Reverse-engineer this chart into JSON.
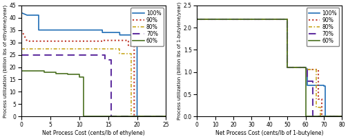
{
  "left": {
    "xlabel": "Net Process Cost (cents/lb of ethylene)",
    "ylabel": "Process utilization (billion lbs of ethylene/year)",
    "xlim": [
      0,
      25
    ],
    "ylim": [
      0,
      45
    ],
    "yticks": [
      0,
      5,
      10,
      15,
      20,
      25,
      30,
      35,
      40,
      45
    ],
    "xticks": [
      0,
      5,
      10,
      15,
      20,
      25
    ],
    "series": [
      {
        "label": "100%",
        "color": "#1f6db5",
        "linestyle": "solid",
        "linewidth": 1.2,
        "x": [
          0,
          1,
          1,
          3,
          3,
          3,
          14,
          14,
          17,
          17,
          19,
          19,
          20,
          20,
          25
        ],
        "y": [
          42,
          41,
          41,
          41,
          35,
          35,
          35,
          34,
          34,
          33,
          33,
          32,
          32,
          0,
          0
        ]
      },
      {
        "label": "90%",
        "color": "#c0392b",
        "linestyle": "dotted",
        "linewidth": 1.5,
        "x": [
          0,
          1,
          14,
          14,
          18.5,
          18.5,
          19.5,
          19.5,
          25
        ],
        "y": [
          35,
          30.5,
          30.5,
          30.8,
          30.8,
          28.5,
          28.5,
          0,
          0
        ]
      },
      {
        "label": "80%",
        "color": "#c8a820",
        "linestyle": "dashdot",
        "linewidth": 1.2,
        "x": [
          0,
          14,
          14,
          17,
          17,
          19,
          19,
          25
        ],
        "y": [
          27.5,
          27.5,
          27.5,
          27.5,
          25.5,
          25.5,
          0,
          0
        ]
      },
      {
        "label": "70%",
        "color": "#6030a0",
        "linestyle": "dashed",
        "linewidth": 1.5,
        "x": [
          0,
          14.5,
          14.5,
          15.5,
          15.5,
          25
        ],
        "y": [
          25,
          25,
          23,
          23,
          0,
          0
        ]
      },
      {
        "label": "60%",
        "color": "#4a7020",
        "linestyle": "solid",
        "linewidth": 1.2,
        "x": [
          0,
          4,
          4,
          6,
          6,
          8,
          8,
          10,
          10,
          10.7,
          10.7,
          25
        ],
        "y": [
          18.5,
          18.5,
          18,
          18,
          17.5,
          17.5,
          17,
          17,
          16,
          16,
          0,
          0
        ]
      }
    ]
  },
  "right": {
    "xlabel": "Net Process Cost (cents/lb of 1-butylene)",
    "ylabel": "Process utilization (billion lbs of 1-butylene/year)",
    "xlim": [
      0,
      80
    ],
    "ylim": [
      0,
      2.5
    ],
    "yticks": [
      0.0,
      0.5,
      1.0,
      1.5,
      2.0,
      2.5
    ],
    "xticks": [
      0,
      10,
      20,
      30,
      40,
      50,
      60,
      70,
      80
    ],
    "series": [
      {
        "label": "100%",
        "color": "#1f6db5",
        "linestyle": "solid",
        "linewidth": 1.2,
        "x": [
          0,
          50,
          50,
          53,
          53,
          60,
          60,
          61,
          61,
          70,
          70,
          71,
          71,
          80
        ],
        "y": [
          2.18,
          2.18,
          1.1,
          1.1,
          1.1,
          1.1,
          1.08,
          1.08,
          0.7,
          0.7,
          0.68,
          0.68,
          0,
          0
        ]
      },
      {
        "label": "90%",
        "color": "#c0392b",
        "linestyle": "dotted",
        "linewidth": 1.5,
        "x": [
          0,
          50,
          50,
          53,
          53,
          60,
          60,
          61,
          61,
          67,
          67,
          69,
          69,
          80
        ],
        "y": [
          2.18,
          2.18,
          1.1,
          1.1,
          1.1,
          1.1,
          1.08,
          1.08,
          1.05,
          1.05,
          0.4,
          0.4,
          0,
          0
        ]
      },
      {
        "label": "80%",
        "color": "#c8a820",
        "linestyle": "dashdot",
        "linewidth": 1.2,
        "x": [
          0,
          50,
          50,
          53,
          53,
          60,
          60,
          61,
          61,
          66,
          66,
          68,
          68,
          80
        ],
        "y": [
          2.18,
          2.18,
          1.1,
          1.1,
          1.1,
          1.1,
          1.08,
          1.08,
          1.05,
          1.05,
          0.2,
          0.2,
          0,
          0
        ]
      },
      {
        "label": "70%",
        "color": "#6030a0",
        "linestyle": "dashed",
        "linewidth": 1.5,
        "x": [
          0,
          50,
          50,
          53,
          53,
          60,
          60,
          61,
          61,
          64,
          64,
          80
        ],
        "y": [
          2.18,
          2.18,
          1.1,
          1.1,
          1.1,
          1.1,
          1.08,
          1.08,
          0.8,
          0.8,
          0,
          0
        ]
      },
      {
        "label": "60%",
        "color": "#4a7020",
        "linestyle": "solid",
        "linewidth": 1.2,
        "x": [
          0,
          50,
          50,
          53,
          53,
          60,
          60,
          80
        ],
        "y": [
          2.18,
          2.18,
          1.1,
          1.1,
          1.1,
          1.1,
          0,
          0
        ]
      }
    ]
  },
  "figsize": [
    5.04,
    2.02
  ],
  "dpi": 100
}
